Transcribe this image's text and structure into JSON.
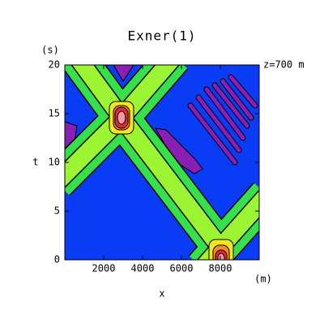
{
  "chart_data": {
    "type": "contour",
    "title": "Exner(1)",
    "annotation": "z=700 m",
    "x_label": "x",
    "x_unit": "(m)",
    "y_label": "t",
    "y_unit": "(s)",
    "xlim": [
      0,
      10000
    ],
    "xticks": [
      2000,
      4000,
      6000,
      8000
    ],
    "ylim": [
      0,
      20
    ],
    "yticks": [
      0,
      5,
      10,
      15,
      20
    ]
  }
}
